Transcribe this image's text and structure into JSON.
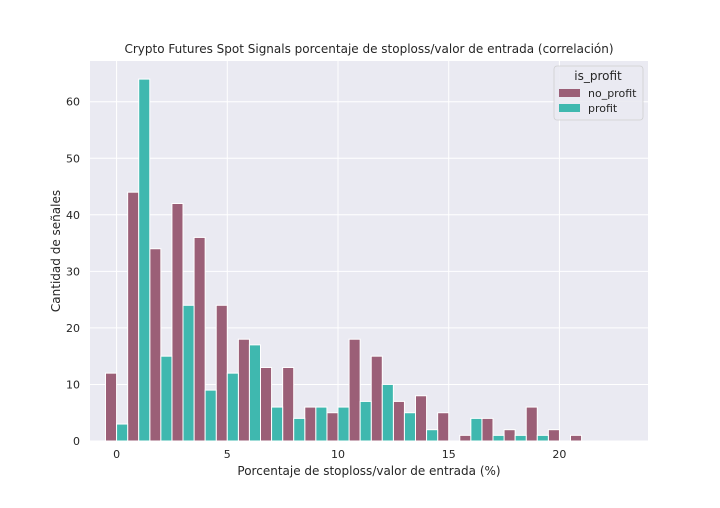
{
  "chart_data": {
    "type": "bar",
    "title": "Crypto Futures Spot Signals porcentaje de stoploss/valor de entrada (correlación)",
    "xlabel": "Porcentaje de stoploss/valor de entrada (%)",
    "ylabel": "Cantidad de señales",
    "xlim": [
      -1.2,
      24
    ],
    "ylim": [
      0,
      67.2
    ],
    "xticks": [
      0,
      5,
      10,
      15,
      20
    ],
    "yticks": [
      0,
      10,
      20,
      30,
      40,
      50,
      60
    ],
    "grid": true,
    "legend": {
      "title": "is_profit",
      "placement": "top-right"
    },
    "bin_width": 1.0,
    "bin_starts": [
      0,
      1,
      2,
      3,
      4,
      5,
      6,
      7,
      8,
      9,
      10,
      11,
      12,
      13,
      14,
      15,
      16,
      17,
      18,
      19,
      20,
      21,
      22
    ],
    "series": [
      {
        "name": "no_profit",
        "color": "#9b5f77",
        "values": [
          12,
          44,
          34,
          42,
          36,
          24,
          18,
          13,
          13,
          6,
          5,
          18,
          15,
          7,
          8,
          5,
          1,
          4,
          2,
          6,
          2,
          1,
          0
        ]
      },
      {
        "name": "profit",
        "color": "#3fb8af",
        "values": [
          3,
          64,
          15,
          24,
          9,
          12,
          17,
          6,
          4,
          6,
          6,
          7,
          10,
          5,
          2,
          0,
          4,
          1,
          1,
          1,
          0,
          0,
          0
        ]
      }
    ]
  }
}
